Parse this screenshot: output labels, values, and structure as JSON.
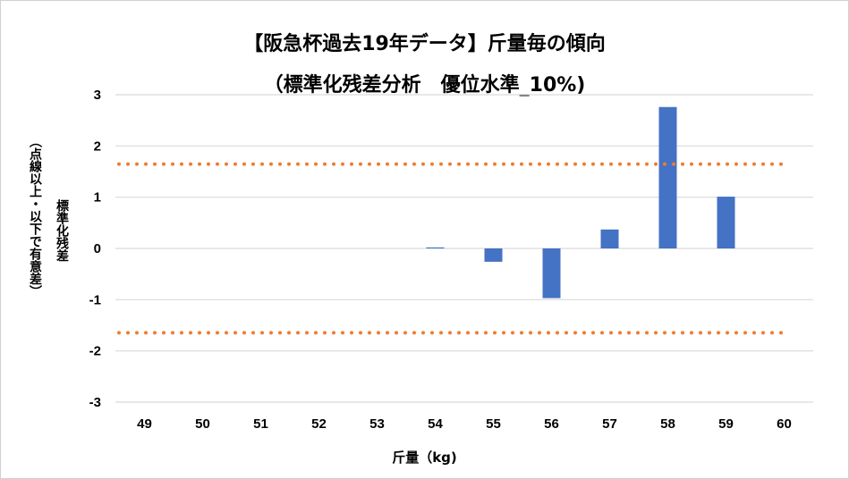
{
  "chart_data": {
    "type": "bar",
    "title": "【阪急杯過去19年データ】斤量毎の傾向",
    "subtitle": "（標準化残差分析　優位水準_10%)",
    "xlabel": "斤量（kg)",
    "ylabel": "標準化残差",
    "ylabel_note": "（点線以上・以下で有意差）",
    "categories": [
      "49",
      "50",
      "51",
      "52",
      "53",
      "54",
      "55",
      "56",
      "57",
      "58",
      "59",
      "60"
    ],
    "values": [
      0,
      0,
      0,
      0,
      0,
      0.02,
      -0.26,
      -0.97,
      0.37,
      2.76,
      1.01,
      0
    ],
    "ylim": [
      -3,
      3
    ],
    "yticks": [
      3,
      2,
      1,
      0,
      -1,
      -2,
      -3
    ],
    "threshold_lines": [
      1.645,
      -1.645
    ],
    "grid": true,
    "colors": {
      "bar": "#4472C4",
      "threshold": "#ED7D31",
      "grid": "#D9D9D9"
    }
  }
}
